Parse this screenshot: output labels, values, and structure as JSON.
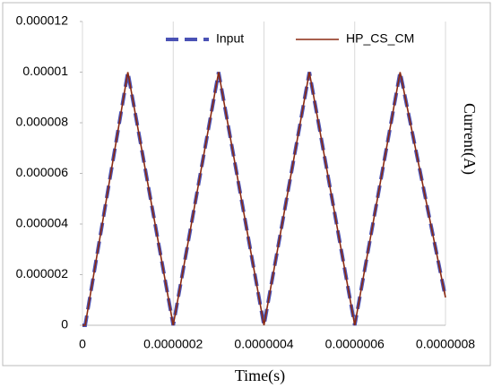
{
  "chart_data": {
    "type": "line",
    "x": [
      0,
      6e-09,
      1e-07,
      2e-07,
      3e-07,
      4e-07,
      5e-07,
      6e-07,
      7e-07,
      8e-07
    ],
    "series": [
      {
        "name": "Input",
        "color": "#4a52b5",
        "dashed": true,
        "values": [
          0,
          0,
          1e-05,
          0,
          1e-05,
          0,
          1e-05,
          0,
          1e-05,
          1.1e-06
        ]
      },
      {
        "name": "HP_CS_CM",
        "color": "#8b2a12",
        "dashed": false,
        "values": [
          0,
          0,
          1e-05,
          0,
          1e-05,
          0,
          1e-05,
          0,
          1e-05,
          1.1e-06
        ]
      }
    ],
    "xlabel": "Time(s)",
    "ylabel": "Current(A)",
    "xlim": [
      0,
      8e-07
    ],
    "ylim": [
      0,
      1.2e-05
    ],
    "xticks": [
      0,
      {
        "value": 2e-07,
        "label": "0.0000002"
      },
      {
        "value": 4e-07,
        "label": "0.0000004"
      },
      {
        "value": 6e-07,
        "label": "0.0000006"
      },
      {
        "value": 8e-07,
        "label": "0.0000008"
      }
    ],
    "yticks": [
      0,
      2e-06,
      4e-06,
      6e-06,
      8e-06,
      1e-05,
      1.2e-05
    ],
    "grid": "x",
    "legend": "top"
  }
}
